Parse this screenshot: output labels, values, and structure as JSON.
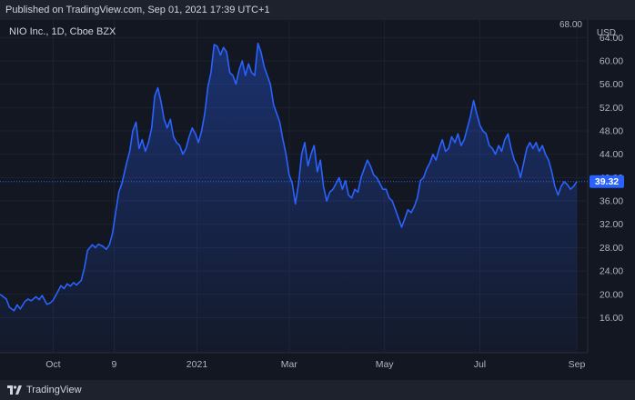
{
  "header": {
    "text": "Published on TradingView.com, Sep 01, 2021 17:39 UTC+1"
  },
  "footer": {
    "brand": "TradingView"
  },
  "chart_data": {
    "type": "area",
    "title": "NIO Inc., 1D, Cboe BZX",
    "currency": "USD",
    "partial_top_label": "68.00",
    "ylim": [
      10,
      67
    ],
    "yticks": [
      16,
      20,
      24,
      28,
      32,
      36,
      40,
      44,
      48,
      52,
      56,
      60,
      64
    ],
    "ytick_labels": [
      "16.00",
      "20.00",
      "24.00",
      "28.00",
      "32.00",
      "36.00",
      "40.00",
      "44.00",
      "48.00",
      "52.00",
      "56.00",
      "60.00",
      "64.00"
    ],
    "xlim": [
      "2020-08-28",
      "2021-09-08"
    ],
    "xticks": [
      {
        "date": "2020-10-01",
        "label": "Oct"
      },
      {
        "date": "2020-11-09",
        "label": "9"
      },
      {
        "date": "2021-01-01",
        "label": "2021"
      },
      {
        "date": "2021-03-01",
        "label": "Mar"
      },
      {
        "date": "2021-05-01",
        "label": "May"
      },
      {
        "date": "2021-07-01",
        "label": "Jul"
      },
      {
        "date": "2021-09-01",
        "label": "Sep"
      }
    ],
    "last_value": 39.32,
    "last_value_label": "39.32",
    "grid": true,
    "line_color": "#2962ff",
    "series": [
      {
        "points": [
          [
            "2020-08-28",
            20.0
          ],
          [
            "2020-09-01",
            19.2
          ],
          [
            "2020-09-03",
            17.8
          ],
          [
            "2020-09-06",
            17.2
          ],
          [
            "2020-09-08",
            18.2
          ],
          [
            "2020-09-10",
            17.5
          ],
          [
            "2020-09-13",
            18.8
          ],
          [
            "2020-09-15",
            19.2
          ],
          [
            "2020-09-17",
            18.9
          ],
          [
            "2020-09-20",
            19.6
          ],
          [
            "2020-09-22",
            19.1
          ],
          [
            "2020-09-24",
            19.8
          ],
          [
            "2020-09-27",
            18.3
          ],
          [
            "2020-09-29",
            18.5
          ],
          [
            "2020-10-01",
            19.0
          ],
          [
            "2020-10-04",
            20.5
          ],
          [
            "2020-10-06",
            21.5
          ],
          [
            "2020-10-08",
            21.0
          ],
          [
            "2020-10-10",
            21.8
          ],
          [
            "2020-10-12",
            21.4
          ],
          [
            "2020-10-14",
            22.0
          ],
          [
            "2020-10-16",
            21.6
          ],
          [
            "2020-10-19",
            22.4
          ],
          [
            "2020-10-21",
            24.5
          ],
          [
            "2020-10-23",
            27.5
          ],
          [
            "2020-10-26",
            28.5
          ],
          [
            "2020-10-28",
            28.0
          ],
          [
            "2020-10-30",
            28.6
          ],
          [
            "2020-11-02",
            28.2
          ],
          [
            "2020-11-04",
            27.7
          ],
          [
            "2020-11-06",
            28.5
          ],
          [
            "2020-11-08",
            30.5
          ],
          [
            "2020-11-10",
            34.0
          ],
          [
            "2020-11-12",
            37.5
          ],
          [
            "2020-11-14",
            39.0
          ],
          [
            "2020-11-17",
            42.5
          ],
          [
            "2020-11-19",
            44.5
          ],
          [
            "2020-11-21",
            48.0
          ],
          [
            "2020-11-23",
            49.5
          ],
          [
            "2020-11-25",
            45.0
          ],
          [
            "2020-11-27",
            46.5
          ],
          [
            "2020-11-29",
            44.5
          ],
          [
            "2020-12-01",
            46.0
          ],
          [
            "2020-12-03",
            48.5
          ],
          [
            "2020-12-05",
            54.0
          ],
          [
            "2020-12-07",
            55.4
          ],
          [
            "2020-12-09",
            53.0
          ],
          [
            "2020-12-11",
            50.0
          ],
          [
            "2020-12-13",
            48.5
          ],
          [
            "2020-12-15",
            50.0
          ],
          [
            "2020-12-17",
            47.0
          ],
          [
            "2020-12-19",
            46.0
          ],
          [
            "2020-12-21",
            45.5
          ],
          [
            "2020-12-23",
            44.0
          ],
          [
            "2020-12-25",
            45.0
          ],
          [
            "2020-12-27",
            47.0
          ],
          [
            "2020-12-29",
            48.5
          ],
          [
            "2020-12-31",
            47.5
          ],
          [
            "2021-01-02",
            46.0
          ],
          [
            "2021-01-04",
            48.0
          ],
          [
            "2021-01-06",
            51.0
          ],
          [
            "2021-01-08",
            55.5
          ],
          [
            "2021-01-10",
            58.0
          ],
          [
            "2021-01-12",
            62.8
          ],
          [
            "2021-01-14",
            62.5
          ],
          [
            "2021-01-16",
            61.0
          ],
          [
            "2021-01-18",
            62.3
          ],
          [
            "2021-01-20",
            61.5
          ],
          [
            "2021-01-22",
            58.0
          ],
          [
            "2021-01-24",
            57.5
          ],
          [
            "2021-01-26",
            56.0
          ],
          [
            "2021-01-28",
            58.5
          ],
          [
            "2021-01-30",
            60.0
          ],
          [
            "2021-02-01",
            57.5
          ],
          [
            "2021-02-03",
            59.5
          ],
          [
            "2021-02-05",
            58.0
          ],
          [
            "2021-02-07",
            57.5
          ],
          [
            "2021-02-09",
            63.0
          ],
          [
            "2021-02-11",
            61.5
          ],
          [
            "2021-02-13",
            59.0
          ],
          [
            "2021-02-15",
            57.5
          ],
          [
            "2021-02-17",
            56.0
          ],
          [
            "2021-02-19",
            52.5
          ],
          [
            "2021-02-21",
            51.0
          ],
          [
            "2021-02-23",
            49.5
          ],
          [
            "2021-02-25",
            46.5
          ],
          [
            "2021-02-27",
            44.0
          ],
          [
            "2021-03-01",
            40.5
          ],
          [
            "2021-03-03",
            39.0
          ],
          [
            "2021-03-05",
            35.5
          ],
          [
            "2021-03-07",
            39.0
          ],
          [
            "2021-03-09",
            44.0
          ],
          [
            "2021-03-11",
            46.0
          ],
          [
            "2021-03-13",
            42.0
          ],
          [
            "2021-03-15",
            44.0
          ],
          [
            "2021-03-17",
            45.5
          ],
          [
            "2021-03-19",
            41.0
          ],
          [
            "2021-03-21",
            43.0
          ],
          [
            "2021-03-23",
            38.5
          ],
          [
            "2021-03-25",
            36.0
          ],
          [
            "2021-03-27",
            37.5
          ],
          [
            "2021-03-29",
            38.0
          ],
          [
            "2021-03-31",
            39.0
          ],
          [
            "2021-04-02",
            40.0
          ],
          [
            "2021-04-04",
            38.0
          ],
          [
            "2021-04-06",
            39.5
          ],
          [
            "2021-04-08",
            37.0
          ],
          [
            "2021-04-10",
            36.5
          ],
          [
            "2021-04-12",
            38.0
          ],
          [
            "2021-04-14",
            37.5
          ],
          [
            "2021-04-16",
            40.0
          ],
          [
            "2021-04-18",
            41.5
          ],
          [
            "2021-04-20",
            43.0
          ],
          [
            "2021-04-22",
            42.0
          ],
          [
            "2021-04-24",
            40.5
          ],
          [
            "2021-04-26",
            40.0
          ],
          [
            "2021-04-28",
            39.0
          ],
          [
            "2021-04-30",
            38.0
          ],
          [
            "2021-05-02",
            38.0
          ],
          [
            "2021-05-04",
            36.5
          ],
          [
            "2021-05-06",
            36.0
          ],
          [
            "2021-05-08",
            34.5
          ],
          [
            "2021-05-10",
            33.0
          ],
          [
            "2021-05-12",
            31.5
          ],
          [
            "2021-05-14",
            33.0
          ],
          [
            "2021-05-16",
            34.5
          ],
          [
            "2021-05-18",
            34.0
          ],
          [
            "2021-05-20",
            35.0
          ],
          [
            "2021-05-22",
            36.5
          ],
          [
            "2021-05-24",
            39.5
          ],
          [
            "2021-05-26",
            40.0
          ],
          [
            "2021-05-28",
            41.5
          ],
          [
            "2021-05-30",
            42.5
          ],
          [
            "2021-06-01",
            44.0
          ],
          [
            "2021-06-03",
            43.0
          ],
          [
            "2021-06-05",
            45.0
          ],
          [
            "2021-06-07",
            46.5
          ],
          [
            "2021-06-09",
            44.5
          ],
          [
            "2021-06-11",
            45.0
          ],
          [
            "2021-06-13",
            47.0
          ],
          [
            "2021-06-15",
            46.0
          ],
          [
            "2021-06-17",
            47.5
          ],
          [
            "2021-06-19",
            45.5
          ],
          [
            "2021-06-21",
            46.5
          ],
          [
            "2021-06-23",
            48.5
          ],
          [
            "2021-06-25",
            50.5
          ],
          [
            "2021-06-27",
            53.2
          ],
          [
            "2021-06-29",
            51.0
          ],
          [
            "2021-07-01",
            49.0
          ],
          [
            "2021-07-03",
            48.0
          ],
          [
            "2021-07-05",
            47.5
          ],
          [
            "2021-07-07",
            45.5
          ],
          [
            "2021-07-09",
            45.0
          ],
          [
            "2021-07-11",
            44.0
          ],
          [
            "2021-07-13",
            45.5
          ],
          [
            "2021-07-15",
            44.5
          ],
          [
            "2021-07-17",
            46.5
          ],
          [
            "2021-07-19",
            47.5
          ],
          [
            "2021-07-21",
            45.0
          ],
          [
            "2021-07-23",
            43.0
          ],
          [
            "2021-07-25",
            42.0
          ],
          [
            "2021-07-27",
            40.0
          ],
          [
            "2021-07-29",
            42.5
          ],
          [
            "2021-07-31",
            45.0
          ],
          [
            "2021-08-02",
            46.0
          ],
          [
            "2021-08-04",
            45.0
          ],
          [
            "2021-08-06",
            46.0
          ],
          [
            "2021-08-08",
            44.5
          ],
          [
            "2021-08-10",
            45.5
          ],
          [
            "2021-08-12",
            44.0
          ],
          [
            "2021-08-14",
            43.0
          ],
          [
            "2021-08-16",
            41.0
          ],
          [
            "2021-08-18",
            38.5
          ],
          [
            "2021-08-20",
            37.0
          ],
          [
            "2021-08-22",
            38.5
          ],
          [
            "2021-08-24",
            39.3
          ],
          [
            "2021-08-26",
            38.8
          ],
          [
            "2021-08-28",
            38.0
          ],
          [
            "2021-08-30",
            38.5
          ],
          [
            "2021-09-01",
            39.32
          ]
        ]
      }
    ]
  }
}
